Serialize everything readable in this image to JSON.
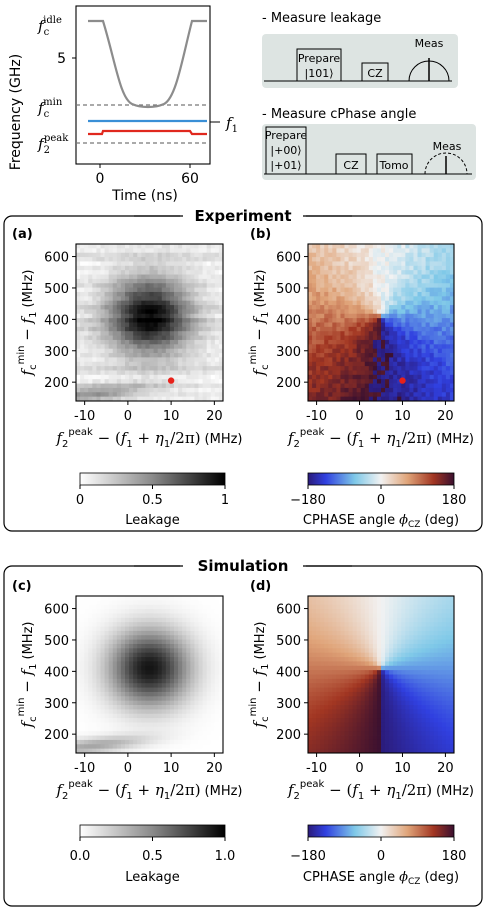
{
  "top": {
    "pulse_plot": {
      "ylabel": "Frequency (GHz)",
      "xlabel": "Time (ns)",
      "xticks": [
        "0",
        "60"
      ],
      "ytick_5": "5",
      "labels": {
        "fc_idle": {
          "base": "f",
          "sub": "c",
          "sup": "idle"
        },
        "fc_min": {
          "base": "f",
          "sub": "c",
          "sup": "min"
        },
        "f2_peak": {
          "base": "f",
          "sub": "2",
          "sup": "peak"
        },
        "f1": {
          "base": "f",
          "sub": "1"
        }
      },
      "colors": {
        "coupler": "#8c8c8c",
        "qubit1": "#3a8fd6",
        "qubit2": "#e0281e",
        "dashed": "#777777"
      }
    },
    "leakage_seq": {
      "title": "- Measure leakage",
      "prepare": "Prepare",
      "state": "|101⟩",
      "cz": "CZ",
      "meas": "Meas"
    },
    "cphase_seq": {
      "title": "- Measure cPhase angle",
      "prepare": "Prepare",
      "state1": "|+00⟩",
      "state2": "|+01⟩",
      "cz": "CZ",
      "tomo": "Tomo",
      "meas": "Meas"
    }
  },
  "experiment_label": "Experiment",
  "simulation_label": "Simulation",
  "panel_labels": {
    "a": "(a)",
    "b": "(b)",
    "c": "(c)",
    "d": "(d)"
  },
  "axes": {
    "xlabel_tail": "(MHz)",
    "ylabel_tail": "(MHz)",
    "xticks": [
      "-10",
      "0",
      "10",
      "20"
    ],
    "yticks": [
      "200",
      "300",
      "400",
      "500",
      "600"
    ]
  },
  "colorbars": {
    "leak_exp": {
      "label": "Leakage",
      "ticks": [
        "0",
        "0.5",
        "1"
      ]
    },
    "phase_exp": {
      "label": "CPHASE angle",
      "ticks": [
        "−180",
        "0",
        "180"
      ]
    },
    "leak_sim": {
      "label": "Leakage",
      "ticks": [
        "0.0",
        "0.5",
        "1.0"
      ]
    },
    "phase_sim": {
      "label": "CPHASE angle",
      "ticks": [
        "−180",
        "0",
        "180"
      ]
    },
    "phase_symbol": "(deg)"
  },
  "chart_data": [
    {
      "type": "heatmap",
      "panel": "(a)",
      "x_range": [
        -12,
        22
      ],
      "y_range": [
        140,
        640
      ],
      "color_range": [
        0,
        1
      ],
      "colorbar_label": "Leakage",
      "max_at": {
        "x": 5,
        "y": 410
      },
      "marker": {
        "x": 10,
        "y": 205,
        "color": "#e8211a"
      }
    },
    {
      "type": "heatmap",
      "panel": "(b)",
      "x_range": [
        -12,
        22
      ],
      "y_range": [
        140,
        640
      ],
      "color_range": [
        -180,
        180
      ],
      "colorbar_label": "CPHASE angle",
      "center": {
        "x": 5,
        "y": 410
      },
      "marker": {
        "x": 10,
        "y": 205,
        "color": "#e8211a"
      }
    },
    {
      "type": "heatmap",
      "panel": "(c)",
      "x_range": [
        -12,
        22
      ],
      "y_range": [
        140,
        640
      ],
      "color_range": [
        0,
        1
      ],
      "colorbar_label": "Leakage",
      "max_at": {
        "x": 5,
        "y": 410
      }
    },
    {
      "type": "heatmap",
      "panel": "(d)",
      "x_range": [
        -12,
        22
      ],
      "y_range": [
        140,
        640
      ],
      "color_range": [
        -180,
        180
      ],
      "colorbar_label": "CPHASE angle",
      "center": {
        "x": 5,
        "y": 410
      }
    },
    {
      "type": "line",
      "panel": "pulse",
      "x_label": "Time (ns)",
      "series": [
        {
          "name": "coupler",
          "color": "#8c8c8c"
        },
        {
          "name": "qubit 1",
          "color": "#3a8fd6"
        },
        {
          "name": "qubit 2",
          "color": "#e0281e"
        }
      ]
    }
  ]
}
